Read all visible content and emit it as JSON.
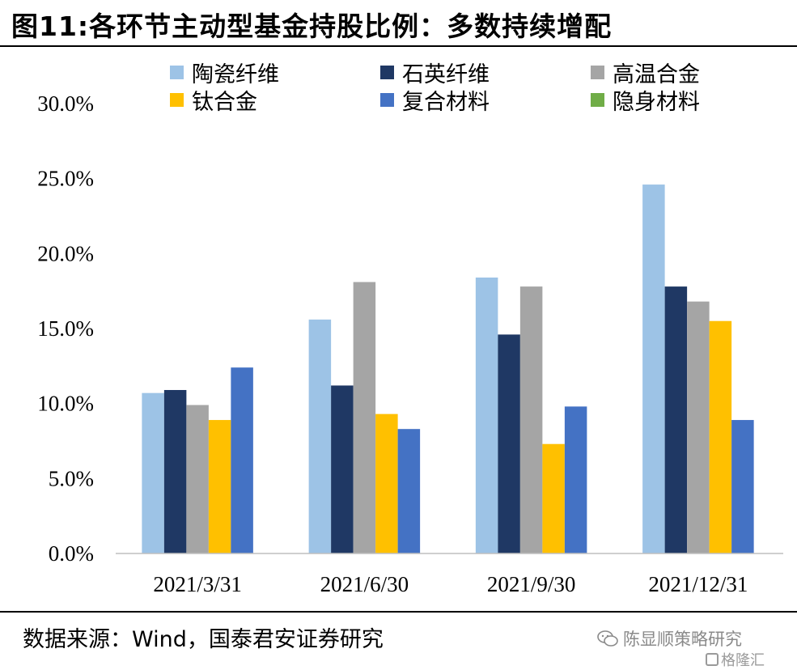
{
  "title": "图11:各环节主动型基金持股比例：多数持续增配",
  "source": "数据来源：Wind，国泰君安证券研究",
  "watermark": {
    "text": "陈显顺策略研究",
    "icon": "wechat-icon"
  },
  "watermark2": {
    "text": "格隆汇"
  },
  "colors": {
    "陶瓷纤维": "#9DC3E6",
    "石英纤维": "#1F3864",
    "高温合金": "#A5A5A5",
    "钛合金": "#FFC000",
    "复合材料": "#4472C4",
    "隐身材料": "#70AD47"
  },
  "chart_data": {
    "type": "bar",
    "categories": [
      "2021/3/31",
      "2021/6/30",
      "2021/9/30",
      "2021/12/31"
    ],
    "series": [
      {
        "name": "陶瓷纤维",
        "values": [
          10.7,
          15.6,
          18.4,
          24.6
        ]
      },
      {
        "name": "石英纤维",
        "values": [
          10.9,
          11.2,
          14.6,
          17.8
        ]
      },
      {
        "name": "高温合金",
        "values": [
          9.9,
          18.1,
          17.8,
          16.8
        ]
      },
      {
        "name": "钛合金",
        "values": [
          8.9,
          9.3,
          7.3,
          15.5
        ]
      },
      {
        "name": "复合材料",
        "values": [
          12.4,
          8.3,
          9.8,
          8.9
        ]
      },
      {
        "name": "隐身材料",
        "values": [
          0,
          0,
          0,
          0
        ]
      }
    ],
    "yticks": [
      "0.0%",
      "5.0%",
      "10.0%",
      "15.0%",
      "20.0%",
      "25.0%",
      "30.0%"
    ],
    "ylim": [
      0,
      30
    ],
    "grid": false,
    "legend": "top"
  }
}
